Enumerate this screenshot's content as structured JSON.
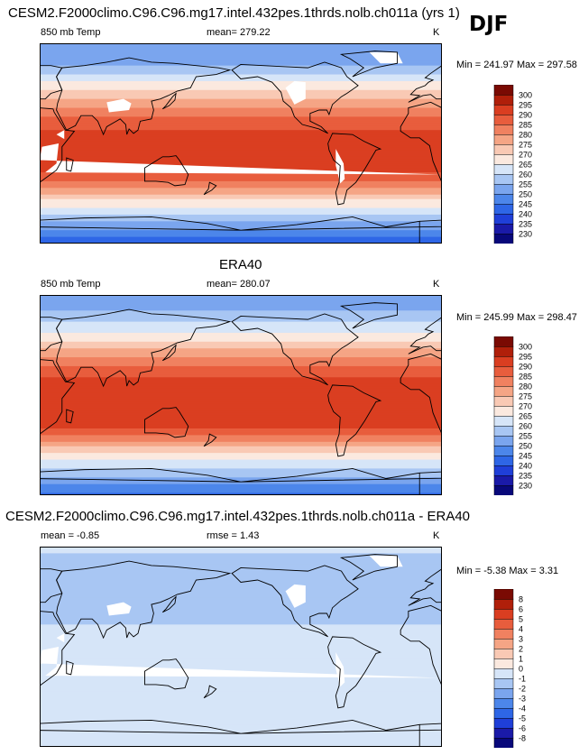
{
  "season": "DJF",
  "panels": [
    {
      "title": "CESM2.F2000climo.C96.C96.mg17.intel.432pes.1thrds.nolb.ch011a (yrs 1)",
      "left_label": "850 mb Temp",
      "mean_label": "mean= 279.22",
      "units": "K",
      "minmax": "Min = 241.97 Max = 297.58"
    },
    {
      "title": "ERA40",
      "left_label": "850 mb Temp",
      "mean_label": "mean= 280.07",
      "units": "K",
      "minmax": "Min = 245.99 Max = 298.47"
    },
    {
      "title": "CESM2.F2000climo.C96.C96.mg17.intel.432pes.1thrds.nolb.ch011a - ERA40",
      "left_label": "mean =  -0.85",
      "mean_label": "rmse =   1.43",
      "units": "K",
      "minmax": "Min =  -5.38 Max =   3.31"
    }
  ],
  "chart_data": [
    {
      "type": "heatmap",
      "title": "CESM2.F2000climo.C96.C96.mg17.intel.432pes.1thrds.nolb.ch011a (yrs 1)",
      "variable": "850 mb Temp",
      "units": "K",
      "mean": 279.22,
      "min": 241.97,
      "max": 297.58,
      "colorbar_levels": [
        230,
        235,
        240,
        245,
        250,
        255,
        260,
        265,
        270,
        275,
        280,
        285,
        290,
        295,
        300
      ],
      "colorbar_colors": [
        "#08087a",
        "#1a1aa8",
        "#1f3fd8",
        "#2e66e6",
        "#4c86ea",
        "#7aa5ee",
        "#a8c6f3",
        "#d6e5f8",
        "#fbe9df",
        "#f9c9b4",
        "#f5a585",
        "#f08160",
        "#e85d3d",
        "#da3e21",
        "#b01f0a",
        "#7a0a03"
      ],
      "lat_profile": [
        [
          -90,
          240
        ],
        [
          -75,
          252
        ],
        [
          -60,
          263
        ],
        [
          -50,
          270
        ],
        [
          -40,
          280
        ],
        [
          -30,
          289
        ],
        [
          -20,
          292
        ],
        [
          -10,
          293
        ],
        [
          0,
          292
        ],
        [
          10,
          291
        ],
        [
          20,
          287
        ],
        [
          30,
          281
        ],
        [
          40,
          275
        ],
        [
          50,
          268
        ],
        [
          60,
          262
        ],
        [
          70,
          255
        ],
        [
          80,
          251
        ],
        [
          90,
          250
        ]
      ],
      "has_missing_mask": true
    },
    {
      "type": "heatmap",
      "title": "ERA40",
      "variable": "850 mb Temp",
      "units": "K",
      "mean": 280.07,
      "min": 245.99,
      "max": 298.47,
      "colorbar_levels": [
        230,
        235,
        240,
        245,
        250,
        255,
        260,
        265,
        270,
        275,
        280,
        285,
        290,
        295,
        300
      ],
      "colorbar_colors": [
        "#08087a",
        "#1a1aa8",
        "#1f3fd8",
        "#2e66e6",
        "#4c86ea",
        "#7aa5ee",
        "#a8c6f3",
        "#d6e5f8",
        "#fbe9df",
        "#f9c9b4",
        "#f5a585",
        "#f08160",
        "#e85d3d",
        "#da3e21",
        "#b01f0a",
        "#7a0a03"
      ],
      "lat_profile": [
        [
          -90,
          243
        ],
        [
          -75,
          254
        ],
        [
          -60,
          264
        ],
        [
          -50,
          271
        ],
        [
          -40,
          281
        ],
        [
          -30,
          290
        ],
        [
          -20,
          293
        ],
        [
          -10,
          294
        ],
        [
          0,
          293
        ],
        [
          10,
          292
        ],
        [
          20,
          288
        ],
        [
          30,
          282
        ],
        [
          40,
          276
        ],
        [
          50,
          269
        ],
        [
          60,
          263
        ],
        [
          70,
          257
        ],
        [
          80,
          253
        ],
        [
          90,
          252
        ]
      ],
      "has_missing_mask": false
    },
    {
      "type": "heatmap",
      "title": "CESM2.F2000climo.C96.C96.mg17.intel.432pes.1thrds.nolb.ch011a - ERA40",
      "units": "K",
      "mean": -0.85,
      "rmse": 1.43,
      "min": -5.38,
      "max": 3.31,
      "colorbar_levels": [
        -8,
        -6,
        -5,
        -4,
        -3,
        -2,
        -1,
        0,
        1,
        2,
        3,
        4,
        5,
        6,
        8
      ],
      "colorbar_colors": [
        "#08087a",
        "#1a1aa8",
        "#1f3fd8",
        "#2e66e6",
        "#4c86ea",
        "#7aa5ee",
        "#a8c6f3",
        "#d6e5f8",
        "#fbe9df",
        "#f9c9b4",
        "#f5a585",
        "#f08160",
        "#e85d3d",
        "#da3e21",
        "#b01f0a",
        "#7a0a03"
      ],
      "lat_profile": [
        [
          -90,
          0.0
        ],
        [
          -60,
          -0.5
        ],
        [
          -30,
          -0.3
        ],
        [
          0,
          -0.6
        ],
        [
          30,
          -1.2
        ],
        [
          60,
          -1.8
        ],
        [
          90,
          -0.8
        ]
      ],
      "has_missing_mask": true
    }
  ]
}
